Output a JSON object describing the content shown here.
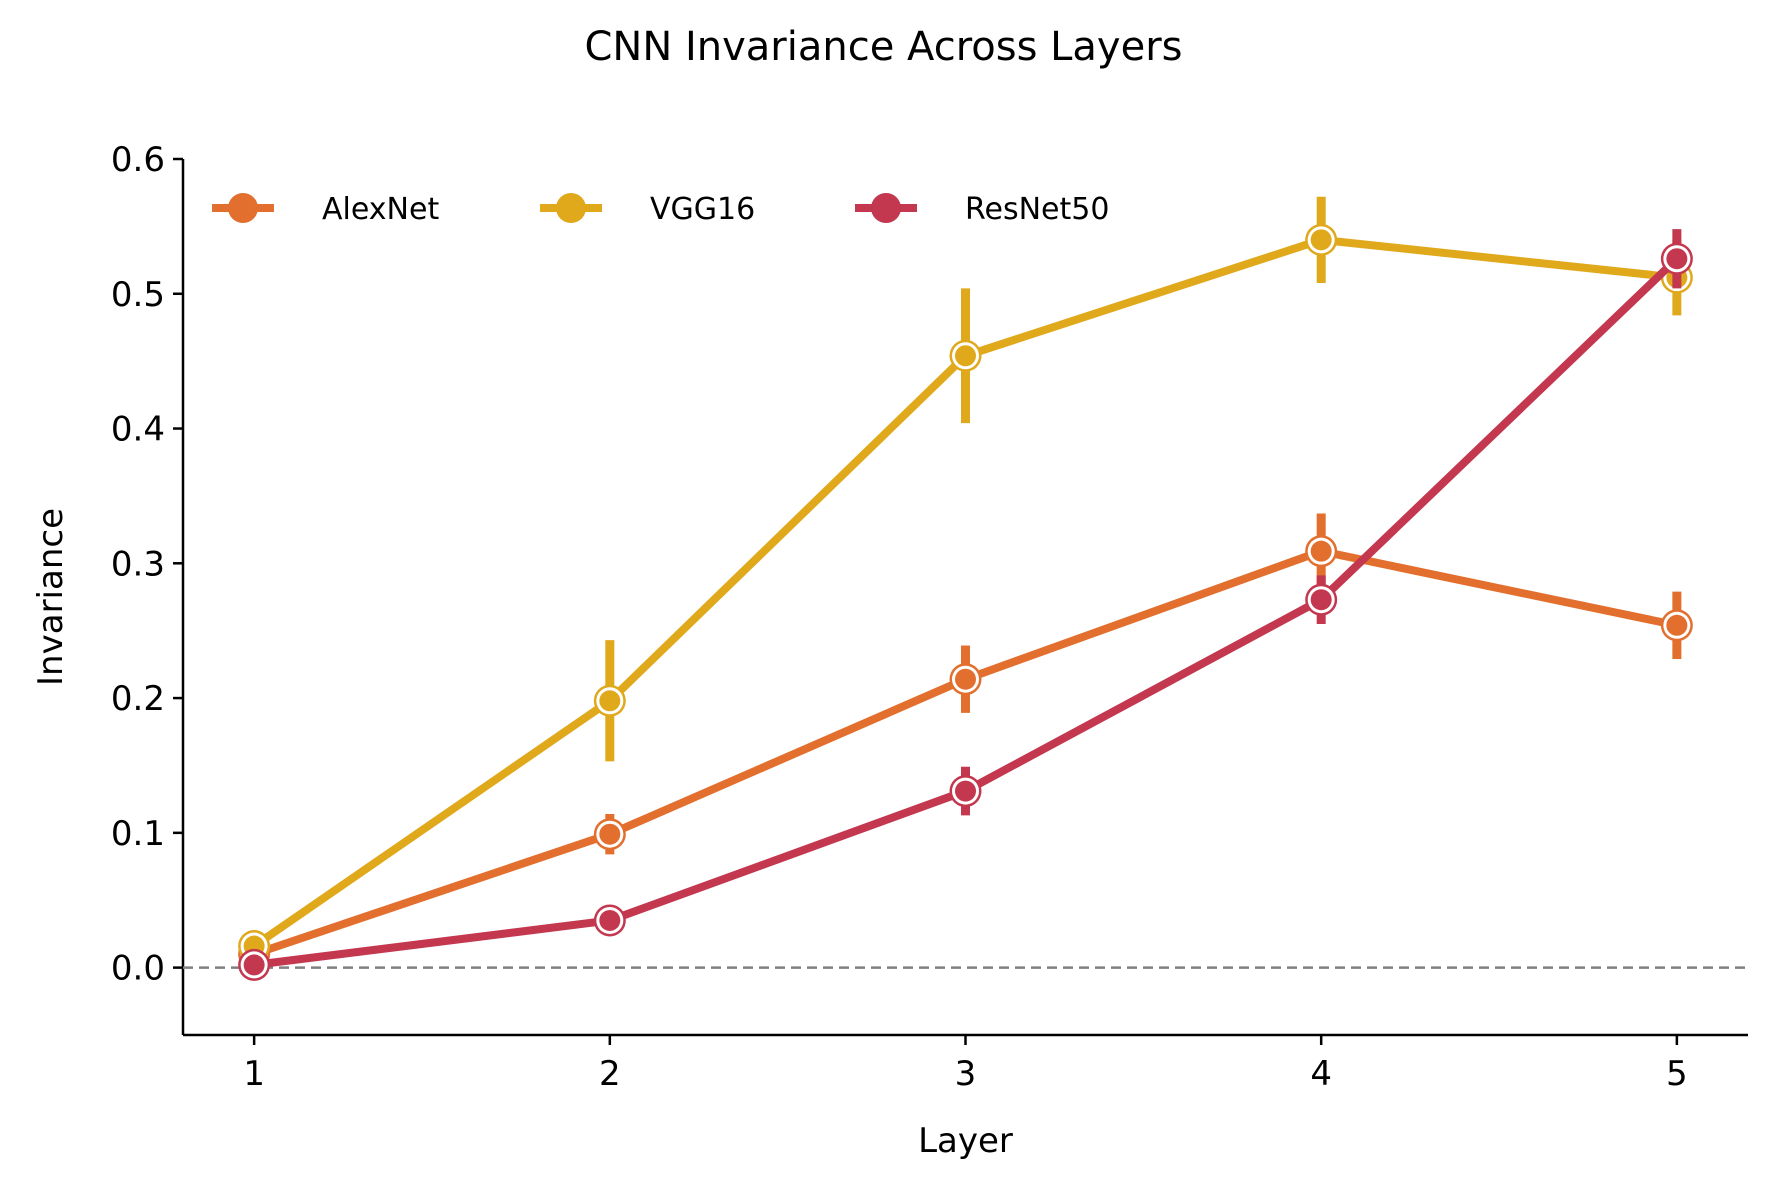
{
  "chart_data": {
    "type": "line",
    "title": "CNN Invariance Across Layers",
    "xlabel": "Layer",
    "ylabel": "Invariance",
    "x": [
      1,
      2,
      3,
      4,
      5
    ],
    "xticks": [
      "1",
      "2",
      "3",
      "4",
      "5"
    ],
    "yticks": [
      "0.0",
      "0.1",
      "0.2",
      "0.3",
      "0.4",
      "0.5",
      "0.6"
    ],
    "ylim": [
      -0.05,
      0.6
    ],
    "xlim": [
      0.8,
      5.2
    ],
    "reference_line": {
      "y": 0.0,
      "style": "dashed",
      "color": "#808080"
    },
    "legend_position": "upper left",
    "series": [
      {
        "name": "AlexNet",
        "color": "#E36F2E",
        "values": [
          0.01,
          0.099,
          0.214,
          0.309,
          0.254
        ],
        "err": [
          0.005,
          0.015,
          0.025,
          0.028,
          0.025
        ]
      },
      {
        "name": "VGG16",
        "color": "#E0A91B",
        "values": [
          0.016,
          0.198,
          0.454,
          0.54,
          0.512
        ],
        "err": [
          0.005,
          0.045,
          0.05,
          0.032,
          0.028
        ]
      },
      {
        "name": "ResNet50",
        "color": "#C3374F",
        "values": [
          0.002,
          0.035,
          0.131,
          0.273,
          0.526
        ],
        "err": [
          0.003,
          0.008,
          0.018,
          0.018,
          0.022
        ]
      }
    ]
  }
}
